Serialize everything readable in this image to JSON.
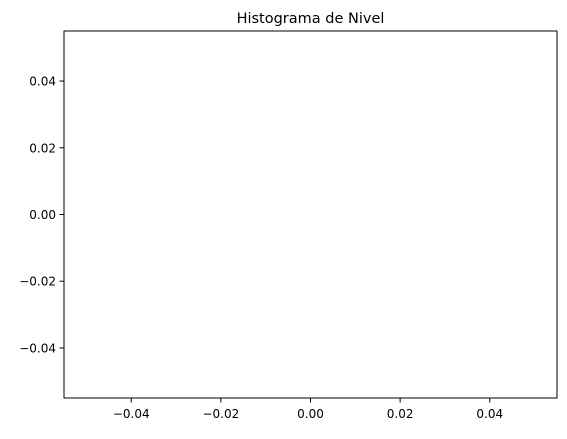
{
  "chart_data": {
    "type": "bar",
    "title": "Histograma de Nivel",
    "xlabel": "",
    "ylabel": "",
    "xlim": [
      -0.055,
      0.055
    ],
    "ylim": [
      -0.055,
      0.055
    ],
    "grid": false,
    "values": [],
    "x_ticks": [
      {
        "value": -0.04,
        "label": "−0.04"
      },
      {
        "value": -0.02,
        "label": "−0.02"
      },
      {
        "value": 0.0,
        "label": "0.00"
      },
      {
        "value": 0.02,
        "label": "0.02"
      },
      {
        "value": 0.04,
        "label": "0.04"
      }
    ],
    "y_ticks": [
      {
        "value": 0.04,
        "label": "0.04"
      },
      {
        "value": 0.02,
        "label": "0.02"
      },
      {
        "value": 0.0,
        "label": "0.00"
      },
      {
        "value": -0.02,
        "label": "−0.02"
      },
      {
        "value": -0.04,
        "label": "−0.04"
      }
    ]
  },
  "colors": {
    "axes": "#000000",
    "background": "#ffffff"
  }
}
